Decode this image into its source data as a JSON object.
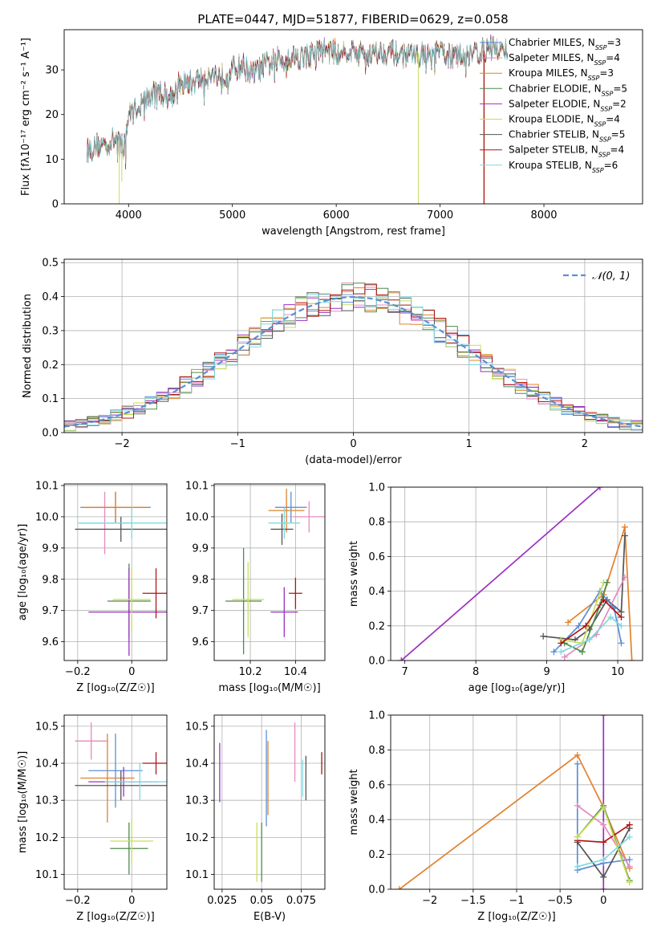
{
  "figure": {
    "title": "PLATE=0447, MJD=51877, FIBERID=0629, z=0.058"
  },
  "colors": {
    "Chabrier MILES": "#5b8fd6",
    "Salpeter MILES": "#e68ac0",
    "Kroupa MILES": "#e0822c",
    "Chabrier ELODIE": "#4f8a4f",
    "Salpeter ELODIE": "#9b30c0",
    "Kroupa ELODIE": "#c8df5a",
    "Chabrier STELIB": "#555555",
    "Salpeter STELIB": "#b01515",
    "Kroupa STELIB": "#7fd9e0"
  },
  "chart_data": [
    {
      "id": "spectrum",
      "type": "line",
      "title": "PLATE=0447, MJD=51877, FIBERID=0629, z=0.058",
      "xlabel": "wavelength [Angstrom, rest frame]",
      "ylabel": "Flux [fλ10⁻¹⁷ erg cm⁻² s⁻¹ A⁻¹]",
      "xlim": [
        3380,
        8950
      ],
      "ylim": [
        0,
        39
      ],
      "xticks": [
        4000,
        5000,
        6000,
        7000,
        8000
      ],
      "yticks": [
        0,
        10,
        20,
        30
      ],
      "grid": false,
      "legend_position": "right",
      "series_order": [
        "Chabrier MILES",
        "Salpeter MILES",
        "Kroupa MILES",
        "Chabrier ELODIE",
        "Salpeter ELODIE",
        "Kroupa ELODIE",
        "Chabrier STELIB",
        "Salpeter STELIB",
        "Kroupa STELIB"
      ],
      "legend": [
        {
          "name": "Chabrier MILES",
          "label": "Chabrier MILES, N",
          "sub": "SSP",
          "suffix": "=3"
        },
        {
          "name": "Salpeter MILES",
          "label": "Salpeter MILES, N",
          "sub": "SSP",
          "suffix": "=4"
        },
        {
          "name": "Kroupa MILES",
          "label": "Kroupa MILES, N",
          "sub": "SSP",
          "suffix": "=3"
        },
        {
          "name": "Chabrier ELODIE",
          "label": "Chabrier ELODIE, N",
          "sub": "SSP",
          "suffix": "=5"
        },
        {
          "name": "Salpeter ELODIE",
          "label": "Salpeter ELODIE, N",
          "sub": "SSP",
          "suffix": "=2"
        },
        {
          "name": "Kroupa ELODIE",
          "label": "Kroupa ELODIE, N",
          "sub": "SSP",
          "suffix": "=4"
        },
        {
          "name": "Chabrier STELIB",
          "label": "Chabrier STELIB, N",
          "sub": "SSP",
          "suffix": "=5"
        },
        {
          "name": "Salpeter STELIB",
          "label": "Salpeter STELIB, N",
          "sub": "SSP",
          "suffix": "=4"
        },
        {
          "name": "Kroupa STELIB",
          "label": "Kroupa STELIB, N",
          "sub": "SSP",
          "suffix": "=6"
        }
      ],
      "continuum": {
        "x": [
          3600,
          3700,
          3800,
          3900,
          3950,
          4000,
          4100,
          4200,
          4300,
          4400,
          4500,
          4600,
          4700,
          4800,
          4900,
          5000,
          5100,
          5200,
          5300,
          5400,
          5500,
          5600,
          5700,
          5800,
          5900,
          6000,
          6100,
          6200,
          6300,
          6400,
          6500,
          6600,
          6700,
          6800,
          6900,
          7000,
          7100,
          7200,
          7300,
          7400,
          7500,
          7600,
          7650
        ],
        "y": [
          12,
          13,
          13.5,
          15,
          12,
          20,
          22,
          24,
          25,
          24,
          27,
          27,
          28,
          29,
          28.5,
          30,
          31,
          29,
          31,
          32,
          32.5,
          33,
          33,
          34,
          34.5,
          34,
          34.5,
          34,
          33.5,
          34,
          34,
          33.5,
          33,
          33.5,
          33,
          34,
          33,
          33,
          34,
          34,
          35,
          34,
          35
        ]
      },
      "spikes": [
        {
          "x": 3910,
          "y": 0,
          "series": "Kroupa ELODIE"
        },
        {
          "x": 3935,
          "y": 5,
          "series": "Kroupa ELODIE"
        },
        {
          "x": 6790,
          "y": 0,
          "series": "Kroupa ELODIE"
        },
        {
          "x": 7420,
          "y": 0,
          "series": "Kroupa MILES"
        },
        {
          "x": 7425,
          "y": 0,
          "series": "Salpeter STELIB"
        }
      ]
    },
    {
      "id": "residuals",
      "type": "step",
      "xlabel": "(data-model)/error",
      "ylabel": "Normed distribution",
      "xlim": [
        -2.5,
        2.5
      ],
      "ylim": [
        0,
        0.51
      ],
      "xticks": [
        -2,
        -1,
        0,
        1,
        2
      ],
      "yticks": [
        0.0,
        0.1,
        0.2,
        0.3,
        0.4,
        0.5
      ],
      "grid": true,
      "legend": [
        {
          "label": "𝒩(0, 1)"
        }
      ],
      "legend_position": "top-right",
      "bin_width": 0.1,
      "gaussian": {
        "mean": 0,
        "sigma": 1
      },
      "example_peaks": [
        0.48,
        0.47,
        0.46,
        0.44,
        0.44,
        0.43,
        0.42,
        0.41,
        0.4
      ]
    },
    {
      "id": "age-vs-Z",
      "type": "errorbar",
      "xlabel": "Z [log₁₀(Z/Z☉)]",
      "ylabel": "age  [log₁₀(age/yr)]",
      "xlim": [
        -0.25,
        0.13
      ],
      "ylim": [
        9.54,
        10.105
      ],
      "xticks": [
        -0.2,
        0.0
      ],
      "yticks": [
        9.6,
        9.7,
        9.8,
        9.9,
        10.0,
        10.1
      ],
      "grid": true,
      "points": [
        {
          "series": "Chabrier MILES",
          "x": -0.06,
          "xerr": 0.13,
          "y": 10.03,
          "yerr": 0.05
        },
        {
          "series": "Salpeter MILES",
          "x": -0.1,
          "xerr": 0.09,
          "y": 9.98,
          "yerr": 0.1
        },
        {
          "series": "Kroupa MILES",
          "x": -0.06,
          "xerr": 0.12,
          "y": 10.03,
          "yerr": 0.05
        },
        {
          "series": "Chabrier ELODIE",
          "x": -0.01,
          "xerr": 0.08,
          "y": 9.73,
          "yerr": 0.12
        },
        {
          "series": "Salpeter ELODIE",
          "x": -0.01,
          "xerr": 0.15,
          "y": 9.695,
          "yerr": 0.14
        },
        {
          "series": "Kroupa ELODIE",
          "x": 0.0,
          "xerr": 0.07,
          "y": 9.735,
          "yerr": 0.1
        },
        {
          "series": "Chabrier STELIB",
          "x": -0.04,
          "xerr": 0.17,
          "y": 9.96,
          "yerr": 0.04
        },
        {
          "series": "Salpeter STELIB",
          "x": 0.09,
          "xerr": 0.05,
          "y": 9.755,
          "yerr": 0.08
        },
        {
          "series": "Kroupa STELIB",
          "x": 0.0,
          "xerr": 0.2,
          "y": 9.98,
          "yerr": 0.05
        }
      ]
    },
    {
      "id": "age-vs-mass",
      "type": "errorbar",
      "xlabel": "mass [log₁₀(M/M☉)]",
      "ylabel": "",
      "xlim": [
        10.04,
        10.53
      ],
      "ylim": [
        9.54,
        10.105
      ],
      "xticks": [
        10.2,
        10.4
      ],
      "yticks": [
        9.6,
        9.7,
        9.8,
        9.9,
        10.0,
        10.1
      ],
      "grid": true,
      "points": [
        {
          "series": "Chabrier MILES",
          "x": 10.38,
          "xerr": 0.07,
          "y": 10.03,
          "yerr": 0.05
        },
        {
          "series": "Salpeter MILES",
          "x": 10.46,
          "xerr": 0.07,
          "y": 10.0,
          "yerr": 0.05
        },
        {
          "series": "Kroupa MILES",
          "x": 10.36,
          "xerr": 0.08,
          "y": 10.02,
          "yerr": 0.07
        },
        {
          "series": "Chabrier ELODIE",
          "x": 10.17,
          "xerr": 0.08,
          "y": 9.73,
          "yerr": 0.17
        },
        {
          "series": "Salpeter ELODIE",
          "x": 10.35,
          "xerr": 0.06,
          "y": 9.695,
          "yerr": 0.08
        },
        {
          "series": "Kroupa ELODIE",
          "x": 10.19,
          "xerr": 0.07,
          "y": 9.735,
          "yerr": 0.12
        },
        {
          "series": "Chabrier STELIB",
          "x": 10.34,
          "xerr": 0.05,
          "y": 9.96,
          "yerr": 0.05
        },
        {
          "series": "Salpeter STELIB",
          "x": 10.4,
          "xerr": 0.03,
          "y": 9.755,
          "yerr": 0.05
        },
        {
          "series": "Kroupa STELIB",
          "x": 10.35,
          "xerr": 0.07,
          "y": 9.98,
          "yerr": 0.05
        }
      ]
    },
    {
      "id": "weight-vs-age",
      "type": "line",
      "xlabel": "age  [log₁₀(age/yr)]",
      "ylabel": "mass weight",
      "xlim": [
        6.8,
        10.35
      ],
      "ylim": [
        0,
        1
      ],
      "xticks": [
        7,
        8,
        9,
        10
      ],
      "yticks": [
        0.0,
        0.2,
        0.4,
        0.6,
        0.8,
        1.0
      ],
      "grid": true,
      "lines": [
        {
          "series": "Salpeter ELODIE",
          "x": [
            6.95,
            9.75
          ],
          "y": [
            0.0,
            1.0
          ]
        },
        {
          "series": "Kroupa MILES",
          "x": [
            9.3,
            9.8,
            10.1,
            10.2
          ],
          "y": [
            0.22,
            0.38,
            0.77,
            0.0
          ]
        },
        {
          "series": "Chabrier STELIB",
          "x": [
            8.95,
            9.4,
            9.6,
            9.85,
            10.05,
            10.1
          ],
          "y": [
            0.14,
            0.12,
            0.18,
            0.35,
            0.28,
            0.72
          ]
        },
        {
          "series": "Salpeter MILES",
          "x": [
            9.25,
            9.7,
            10.1
          ],
          "y": [
            0.02,
            0.15,
            0.48
          ]
        },
        {
          "series": "Chabrier MILES",
          "x": [
            9.1,
            9.45,
            9.75,
            9.95,
            10.05
          ],
          "y": [
            0.05,
            0.2,
            0.4,
            0.3,
            0.1
          ]
        },
        {
          "series": "Kroupa ELODIE",
          "x": [
            9.2,
            9.5,
            9.8
          ],
          "y": [
            0.12,
            0.1,
            0.45
          ]
        },
        {
          "series": "Chabrier ELODIE",
          "x": [
            9.25,
            9.5,
            9.75,
            9.85
          ],
          "y": [
            0.1,
            0.05,
            0.32,
            0.45
          ]
        },
        {
          "series": "Salpeter STELIB",
          "x": [
            9.2,
            9.55,
            9.8,
            10.05
          ],
          "y": [
            0.1,
            0.2,
            0.35,
            0.25
          ]
        },
        {
          "series": "Kroupa STELIB",
          "x": [
            9.2,
            9.6,
            9.9,
            10.05
          ],
          "y": [
            0.05,
            0.12,
            0.25,
            0.2
          ]
        }
      ]
    },
    {
      "id": "mass-vs-Z",
      "type": "errorbar",
      "xlabel": "Z [log₁₀(Z/Z☉)]",
      "ylabel": "mass [log₁₀(M/M☉)]",
      "xlim": [
        -0.25,
        0.13
      ],
      "ylim": [
        10.06,
        10.53
      ],
      "xticks": [
        -0.2,
        0.0
      ],
      "yticks": [
        10.1,
        10.2,
        10.3,
        10.4,
        10.5
      ],
      "grid": true,
      "points": [
        {
          "series": "Chabrier MILES",
          "x": -0.06,
          "xerr": 0.1,
          "y": 10.38,
          "yerr": 0.1
        },
        {
          "series": "Salpeter MILES",
          "x": -0.15,
          "xerr": 0.06,
          "y": 10.46,
          "yerr": 0.05
        },
        {
          "series": "Kroupa MILES",
          "x": -0.09,
          "xerr": 0.1,
          "y": 10.36,
          "yerr": 0.12
        },
        {
          "series": "Chabrier ELODIE",
          "x": -0.01,
          "xerr": 0.07,
          "y": 10.17,
          "yerr": 0.07
        },
        {
          "series": "Salpeter ELODIE",
          "x": -0.03,
          "xerr": 0.13,
          "y": 10.35,
          "yerr": 0.04
        },
        {
          "series": "Kroupa ELODIE",
          "x": 0.0,
          "xerr": 0.08,
          "y": 10.19,
          "yerr": 0.06
        },
        {
          "series": "Chabrier STELIB",
          "x": -0.04,
          "xerr": 0.17,
          "y": 10.34,
          "yerr": 0.04
        },
        {
          "series": "Salpeter STELIB",
          "x": 0.09,
          "xerr": 0.05,
          "y": 10.4,
          "yerr": 0.03
        },
        {
          "series": "Kroupa STELIB",
          "x": 0.03,
          "xerr": 0.13,
          "y": 10.35,
          "yerr": 0.05
        }
      ]
    },
    {
      "id": "mass-vs-ebv",
      "type": "errorbar",
      "xlabel": "E(B-V)",
      "ylabel": "",
      "xlim": [
        0.02,
        0.09
      ],
      "ylim": [
        10.06,
        10.53
      ],
      "xticks": [
        0.025,
        0.05,
        0.075
      ],
      "ytick_labels": [
        "10.1",
        "10.2",
        "10.3",
        "10.4",
        "10.5"
      ],
      "yticks": [
        10.1,
        10.2,
        10.3,
        10.4,
        10.5
      ],
      "grid": true,
      "points": [
        {
          "series": "Salpeter ELODIE",
          "x": 0.0235,
          "y": 10.375,
          "yerr": 0.08
        },
        {
          "series": "Kroupa ELODIE",
          "x": 0.047,
          "y": 10.16,
          "yerr": 0.08
        },
        {
          "series": "Chabrier ELODIE",
          "x": 0.05,
          "y": 10.16,
          "yerr": 0.08
        },
        {
          "series": "Kroupa MILES",
          "x": 0.054,
          "y": 10.36,
          "yerr": 0.1
        },
        {
          "series": "Chabrier MILES",
          "x": 0.053,
          "y": 10.36,
          "yerr": 0.13
        },
        {
          "series": "Salpeter MILES",
          "x": 0.071,
          "y": 10.43,
          "yerr": 0.08
        },
        {
          "series": "Kroupa STELIB",
          "x": 0.076,
          "y": 10.36,
          "yerr": 0.05
        },
        {
          "series": "Chabrier STELIB",
          "x": 0.078,
          "y": 10.36,
          "yerr": 0.06
        },
        {
          "series": "Salpeter STELIB",
          "x": 0.088,
          "y": 10.4,
          "yerr": 0.03
        }
      ]
    },
    {
      "id": "weight-vs-Z",
      "type": "line",
      "xlabel": "Z [log₁₀(Z/Z☉)]",
      "ylabel": "mass weight",
      "xlim": [
        -2.45,
        0.45
      ],
      "ylim": [
        0,
        1
      ],
      "xticks": [
        -2.0,
        -1.5,
        -1.0,
        -0.5,
        0.0
      ],
      "yticks": [
        0.0,
        0.2,
        0.4,
        0.6,
        0.8,
        1.0
      ],
      "grid": true,
      "lines": [
        {
          "series": "Salpeter ELODIE",
          "x": [
            0.0,
            0.0
          ],
          "y": [
            0.0,
            1.0
          ]
        },
        {
          "series": "Kroupa MILES",
          "x": [
            -2.35,
            -0.3,
            0.0,
            0.3
          ],
          "y": [
            0.0,
            0.77,
            0.47,
            0.12
          ]
        },
        {
          "series": "Chabrier MILES",
          "x": [
            -0.3,
            -0.3,
            0.0,
            0.3
          ],
          "y": [
            0.72,
            0.11,
            0.15,
            0.17
          ]
        },
        {
          "series": "Salpeter MILES",
          "x": [
            -0.3,
            0.0,
            0.3
          ],
          "y": [
            0.48,
            0.37,
            0.13
          ]
        },
        {
          "series": "Chabrier STELIB",
          "x": [
            -0.3,
            0.0,
            0.3
          ],
          "y": [
            0.27,
            0.07,
            0.35
          ]
        },
        {
          "series": "Salpeter STELIB",
          "x": [
            -0.3,
            0.0,
            0.3
          ],
          "y": [
            0.28,
            0.27,
            0.37
          ]
        },
        {
          "series": "Chabrier ELODIE",
          "x": [
            -0.3,
            0.0,
            0.3
          ],
          "y": [
            0.3,
            0.48,
            0.05
          ]
        },
        {
          "series": "Kroupa ELODIE",
          "x": [
            -0.3,
            0.0,
            0.3
          ],
          "y": [
            0.3,
            0.47,
            0.04
          ]
        },
        {
          "series": "Kroupa STELIB",
          "x": [
            -0.3,
            0.0,
            0.3
          ],
          "y": [
            0.13,
            0.17,
            0.3
          ]
        }
      ]
    }
  ]
}
